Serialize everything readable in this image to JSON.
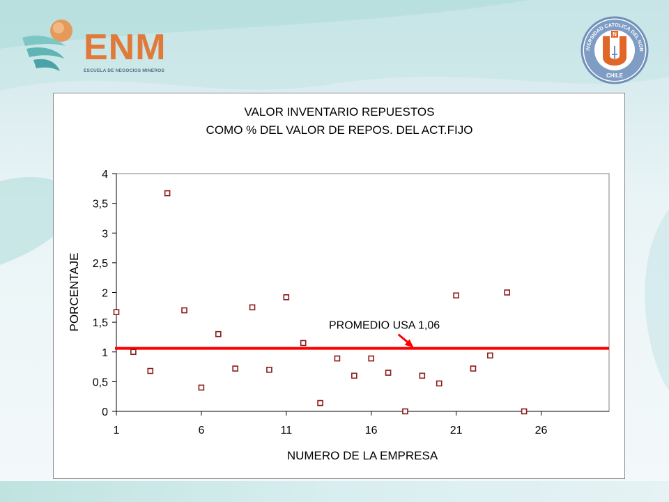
{
  "header": {
    "logo_left": {
      "name": "ENM",
      "subtitle": "ESCUELA DE NEGOCIOS MINEROS"
    },
    "logo_right": {
      "ring_text": "UNIVERSIDAD CATOLICA DEL NORTE",
      "bottom_text": "CHILE",
      "letter": "N"
    }
  },
  "colors": {
    "point_stroke": "#8b1a1a",
    "average_line": "#ff0000",
    "accent_orange": "#e07a3a",
    "logo_blue": "#6f8fb8"
  },
  "chart_data": {
    "type": "scatter",
    "title": [
      "VALOR INVENTARIO REPUESTOS",
      "COMO % DEL VALOR DE REPOS. DEL ACT.FIJO"
    ],
    "xlabel": "NUMERO DE LA EMPRESA",
    "ylabel": "PORCENTAJE",
    "xlim": [
      1,
      30
    ],
    "ylim": [
      0,
      4
    ],
    "xticks": [
      1,
      6,
      11,
      16,
      21,
      26
    ],
    "yticks": [
      {
        "value": 0,
        "label": "0"
      },
      {
        "value": 0.5,
        "label": "0,5"
      },
      {
        "value": 1,
        "label": "1"
      },
      {
        "value": 1.5,
        "label": "1,5"
      },
      {
        "value": 2,
        "label": "2"
      },
      {
        "value": 2.5,
        "label": "2,5"
      },
      {
        "value": 3,
        "label": "3"
      },
      {
        "value": 3.5,
        "label": "3,5"
      },
      {
        "value": 4,
        "label": "4"
      }
    ],
    "grid": false,
    "points": [
      {
        "x": 1,
        "y": 1.67
      },
      {
        "x": 2,
        "y": 1.0
      },
      {
        "x": 3,
        "y": 0.68
      },
      {
        "x": 4,
        "y": 3.67
      },
      {
        "x": 5,
        "y": 1.7
      },
      {
        "x": 6,
        "y": 0.4
      },
      {
        "x": 7,
        "y": 1.3
      },
      {
        "x": 8,
        "y": 0.72
      },
      {
        "x": 9,
        "y": 1.75
      },
      {
        "x": 10,
        "y": 0.7
      },
      {
        "x": 11,
        "y": 1.92
      },
      {
        "x": 12,
        "y": 1.15
      },
      {
        "x": 13,
        "y": 0.14
      },
      {
        "x": 14,
        "y": 0.89
      },
      {
        "x": 15,
        "y": 0.6
      },
      {
        "x": 16,
        "y": 0.89
      },
      {
        "x": 17,
        "y": 0.65
      },
      {
        "x": 18,
        "y": 0.0
      },
      {
        "x": 19,
        "y": 0.6
      },
      {
        "x": 20,
        "y": 0.47
      },
      {
        "x": 21,
        "y": 1.95
      },
      {
        "x": 22,
        "y": 0.72
      },
      {
        "x": 23,
        "y": 0.94
      },
      {
        "x": 24,
        "y": 2.0
      },
      {
        "x": 25,
        "y": 0.0
      }
    ],
    "average": {
      "value": 1.06,
      "label": "PROMEDIO USA 1,06",
      "arrow_x": 18.5
    }
  }
}
